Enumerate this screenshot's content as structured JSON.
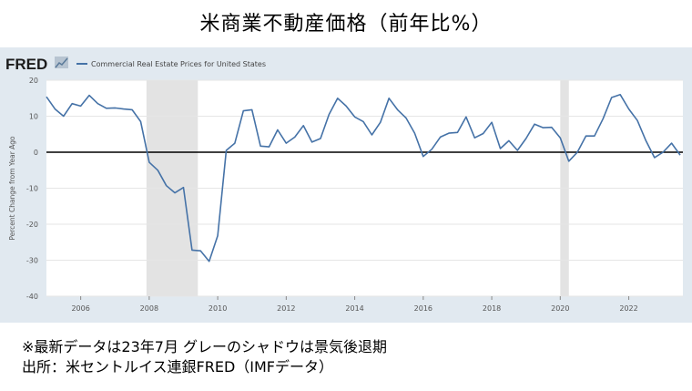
{
  "page": {
    "title": "米商業不動産価格（前年比%）",
    "note_line1": "※最新データは23年7月 グレーのシャドウは景気後退期",
    "note_line2": "出所：米セントルイス連銀FRED（IMFデータ）"
  },
  "chart_data": {
    "type": "line",
    "brand": "FRED",
    "legend_position": "top-left",
    "grid": true,
    "series": [
      {
        "name": "Commercial Real Estate Prices for United States",
        "color": "#4572a7",
        "x": [
          2005.0,
          2005.25,
          2005.5,
          2005.75,
          2006.0,
          2006.25,
          2006.5,
          2006.75,
          2007.0,
          2007.25,
          2007.5,
          2007.75,
          2008.0,
          2008.25,
          2008.5,
          2008.75,
          2009.0,
          2009.25,
          2009.5,
          2009.75,
          2010.0,
          2010.25,
          2010.5,
          2010.75,
          2011.0,
          2011.25,
          2011.5,
          2011.75,
          2012.0,
          2012.25,
          2012.5,
          2012.75,
          2013.0,
          2013.25,
          2013.5,
          2013.75,
          2014.0,
          2014.25,
          2014.5,
          2014.75,
          2015.0,
          2015.25,
          2015.5,
          2015.75,
          2016.0,
          2016.25,
          2016.5,
          2016.75,
          2017.0,
          2017.25,
          2017.5,
          2017.75,
          2018.0,
          2018.25,
          2018.5,
          2018.75,
          2019.0,
          2019.25,
          2019.5,
          2019.75,
          2020.0,
          2020.25,
          2020.5,
          2020.75,
          2021.0,
          2021.25,
          2021.5,
          2021.75,
          2022.0,
          2022.25,
          2022.5,
          2022.75,
          2023.0,
          2023.25,
          2023.5
        ],
        "values": [
          15.4,
          12.0,
          10.0,
          13.5,
          12.8,
          15.8,
          13.5,
          12.2,
          12.3,
          12.0,
          11.8,
          8.5,
          -2.8,
          -5.0,
          -9.3,
          -11.3,
          -9.8,
          -27.2,
          -27.4,
          -30.3,
          -23.2,
          0.5,
          2.5,
          11.5,
          11.8,
          1.7,
          1.5,
          6.2,
          2.5,
          4.2,
          7.4,
          2.8,
          3.8,
          10.5,
          15.0,
          12.8,
          9.8,
          8.5,
          4.8,
          8.3,
          15.0,
          11.8,
          9.5,
          5.3,
          -1.2,
          0.8,
          4.2,
          5.3,
          5.5,
          9.8,
          4.0,
          5.2,
          8.3,
          1.0,
          3.2,
          0.5,
          3.8,
          7.8,
          6.8,
          6.9,
          4.0,
          -2.5,
          0.0,
          4.5,
          4.5,
          9.3,
          15.2,
          16.0,
          12.0,
          8.8,
          3.2,
          -1.5,
          0.0,
          2.5,
          -0.8
        ]
      }
    ],
    "xlim": [
      2005.0,
      2023.58
    ],
    "ylim": [
      -40,
      20
    ],
    "xticks": [
      2006,
      2008,
      2010,
      2012,
      2014,
      2016,
      2018,
      2020,
      2022
    ],
    "yticks": [
      20,
      10,
      0,
      -10,
      -20,
      -30,
      -40
    ],
    "ylabel": "Percent Change from Year Ago",
    "recessions": [
      [
        2007.92,
        2009.42
      ],
      [
        2020.0,
        2020.25
      ]
    ]
  }
}
